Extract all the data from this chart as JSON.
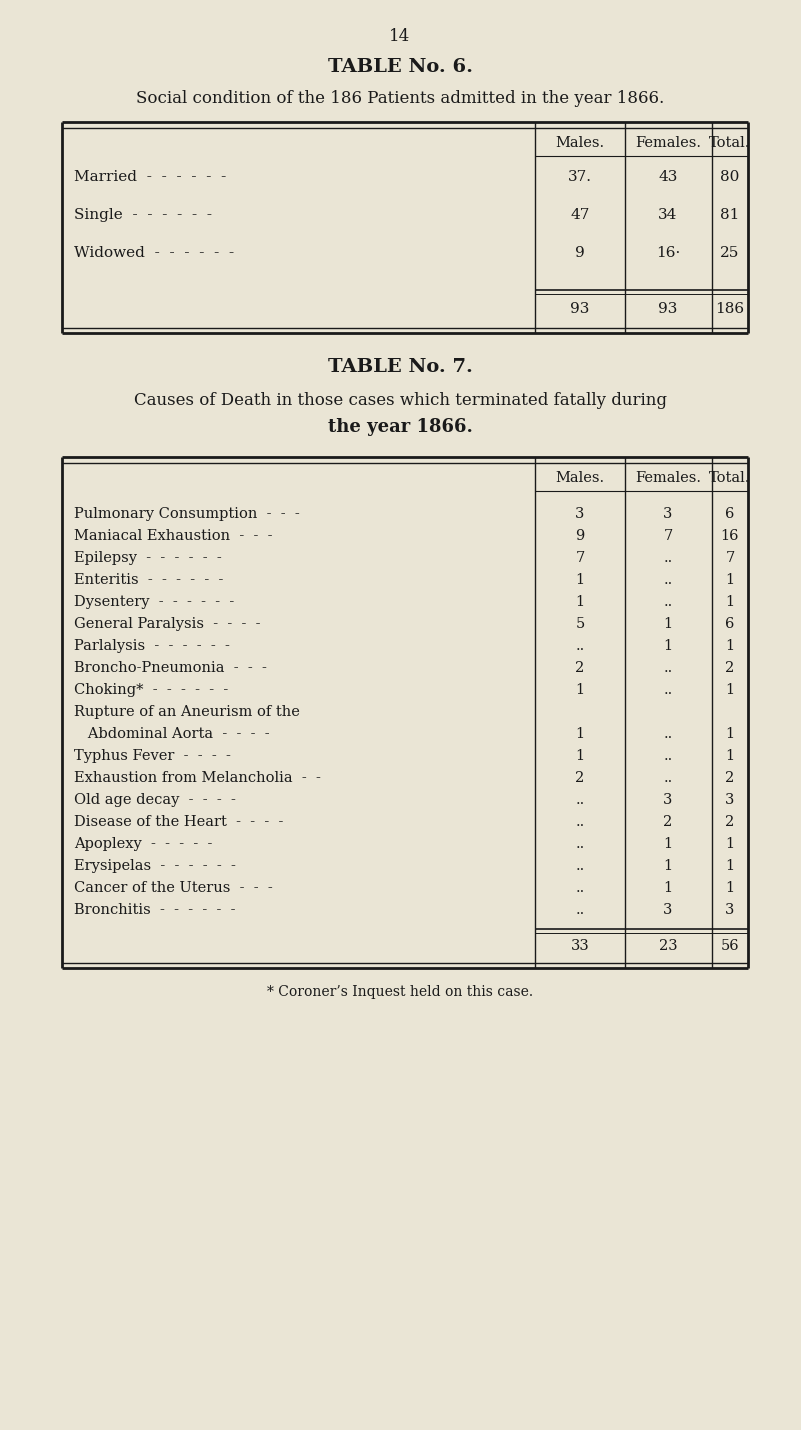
{
  "bg_color": "#EAE5D5",
  "text_color": "#1a1a1a",
  "page_number": "14",
  "table6": {
    "title": "TABLE No. 6.",
    "subtitle": "Social condition of the 186 Patients admitted in the year 1866.",
    "headers": [
      "Males.",
      "Females.",
      "Total."
    ],
    "rows": [
      [
        "Married  -  -  -  -  -  -",
        "37·",
        "43",
        "80"
      ],
      [
        "Single  -  -  -  -  -  -",
        "47",
        "34",
        "81"
      ],
      [
        "Widowed  -  -  -  -  -  -",
        "9",
        "16·",
        "25"
      ]
    ],
    "totals": [
      "93",
      "93",
      "186"
    ]
  },
  "table7": {
    "title": "TABLE No. 7.",
    "subtitle_line1": "Causes of Death in those cases which terminated fatally during",
    "subtitle_line2": "the year 1866.",
    "headers": [
      "Males.",
      "Females.",
      "Total."
    ],
    "rows": [
      [
        "Pulmonary Consumption  -  -  -",
        "3",
        "3",
        "6"
      ],
      [
        "Maniacal Exhaustion  -  -  -",
        "9",
        "7",
        "16"
      ],
      [
        "Epilepsy  -  -  -  -  -  -",
        "7",
        "..",
        "7"
      ],
      [
        "Enteritis  -  -  -  -  -  -",
        "1",
        "..",
        "1"
      ],
      [
        "Dysentery  -  -  -  -  -  -",
        "1",
        "..",
        "1"
      ],
      [
        "General Paralysis  -  -  -  -",
        "5",
        "1",
        "6"
      ],
      [
        "Parlalysis  -  -  -  -  -  -",
        "..",
        "1",
        "1"
      ],
      [
        "Broncho-Pneumonia  -  -  -",
        "2",
        "..",
        "2"
      ],
      [
        "Choking*  -  -  -  -  -  -",
        "1",
        "..",
        "1"
      ],
      [
        "Rupture of an Aneurism of the",
        "",
        "",
        ""
      ],
      [
        "   Abdominal Aorta  -  -  -  -",
        "1",
        "..",
        "1"
      ],
      [
        "Typhus Fever  -  -  -  -",
        "1",
        "..",
        "1"
      ],
      [
        "Exhaustion from Melancholia  -  -",
        "2",
        "..",
        "2"
      ],
      [
        "Old age decay  -  -  -  -",
        "..",
        "3",
        "3"
      ],
      [
        "Disease of the Heart  -  -  -  -",
        "..",
        "2",
        "2"
      ],
      [
        "Apoplexy  -  -  -  -  -",
        "..",
        "1",
        "1"
      ],
      [
        "Erysipelas  -  -  -  -  -  -",
        "..",
        "1",
        "1"
      ],
      [
        "Cancer of the Uterus  -  -  -",
        "..",
        "1",
        "1"
      ],
      [
        "Bronchitis  -  -  -  -  -  -",
        "..",
        "3",
        "3"
      ]
    ],
    "totals": [
      "33",
      "23",
      "56"
    ]
  },
  "footnote": "* Coroner’s Inquest held on this case."
}
